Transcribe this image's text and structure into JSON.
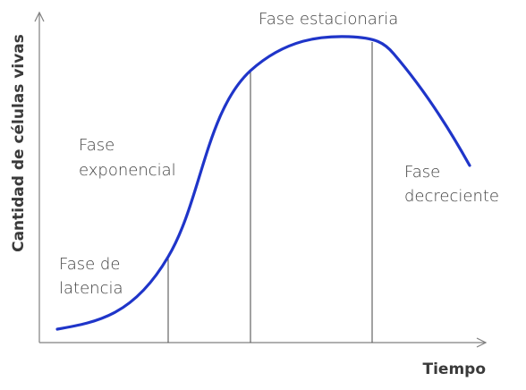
{
  "diagram": {
    "y_axis_label": "Cantidad de células vivas",
    "x_axis_label": "Tiempo",
    "phases": [
      {
        "id": "latencia",
        "lines": [
          "Fase de",
          "latencia"
        ]
      },
      {
        "id": "exponencial",
        "lines": [
          "Fase",
          "exponencial"
        ]
      },
      {
        "id": "estacionaria",
        "lines": [
          "Fase estacionaria"
        ]
      },
      {
        "id": "decreciente",
        "lines": [
          "Fase",
          "decreciente"
        ]
      }
    ],
    "colors": {
      "curve": "#1f35c9",
      "axes": "#808080",
      "phase_dividers": "#555555",
      "text": "#404040"
    }
  }
}
